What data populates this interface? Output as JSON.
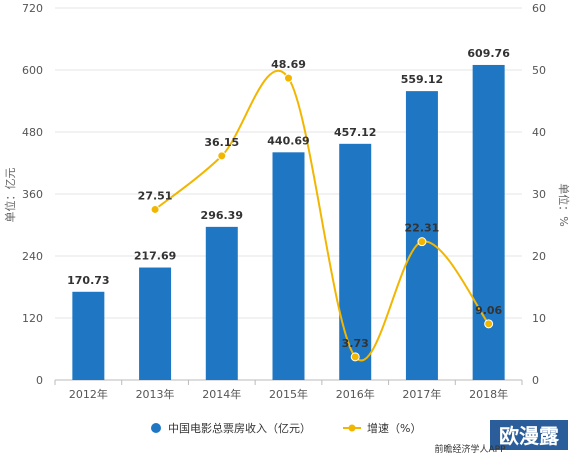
{
  "chart_data": {
    "type": "bar",
    "categories": [
      "2012年",
      "2013年",
      "2014年",
      "2015年",
      "2016年",
      "2017年",
      "2018年"
    ],
    "series": [
      {
        "name": "中国电影总票房收入（亿元）",
        "type": "bar",
        "axis": "left",
        "values": [
          170.73,
          217.69,
          296.39,
          440.69,
          457.12,
          559.12,
          609.76
        ],
        "labels": [
          "170.73",
          "217.69",
          "296.39",
          "440.69",
          "457.12",
          "559.12",
          "609.76"
        ],
        "color": "#1f77c4"
      },
      {
        "name": "增速（%）",
        "type": "line",
        "axis": "right",
        "values": [
          null,
          27.51,
          36.15,
          48.69,
          3.73,
          22.31,
          9.06
        ],
        "labels": [
          "",
          "27.51",
          "36.15",
          "48.69",
          "3.73",
          "22.31",
          "9.06"
        ],
        "color": "#f2b600"
      }
    ],
    "ylabel": "单位：亿元",
    "ylabel_right": "单位：%",
    "ylim": [
      0,
      720
    ],
    "yticks": [
      0,
      120,
      240,
      360,
      480,
      600,
      720
    ],
    "ylim_right": [
      0,
      60
    ],
    "yticks_right": [
      0,
      10,
      20,
      30,
      40,
      50,
      60
    ],
    "grid": true,
    "legend": "bottom",
    "smooth_line": true
  },
  "watermark": {
    "text": "欧漫露",
    "subtext": "前瞻经济学人APP"
  }
}
